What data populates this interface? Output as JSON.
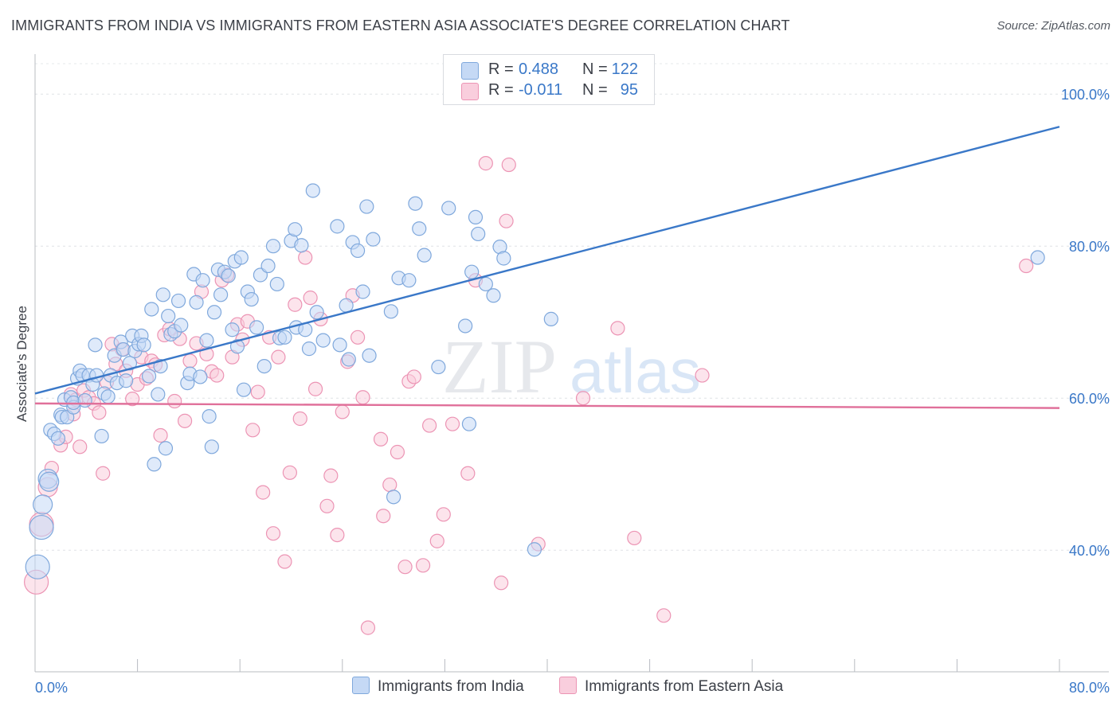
{
  "title": "IMMIGRANTS FROM INDIA VS IMMIGRANTS FROM EASTERN ASIA ASSOCIATE'S DEGREE CORRELATION CHART",
  "source": "Source: ZipAtlas.com",
  "watermark": {
    "zip": "ZIP",
    "atlas": "atlas"
  },
  "legend": {
    "india": {
      "r_label": "R =",
      "r_value": "0.488",
      "n_label": "N =",
      "n_value": "122"
    },
    "eastasia": {
      "r_label": "R =",
      "r_value": "-0.011",
      "n_label": "N =",
      "n_value": "95"
    }
  },
  "colors": {
    "india_fill": "#c5d9f5",
    "india_stroke": "#7fa8dc",
    "india_line": "#3a78c8",
    "eastasia_fill": "#f9cedd",
    "eastasia_stroke": "#ec94b4",
    "eastasia_line": "#e0709a",
    "axis_label": "#3a78c8"
  },
  "chart_data": {
    "type": "scatter",
    "title": "IMMIGRANTS FROM INDIA VS IMMIGRANTS FROM EASTERN ASIA ASSOCIATE'S DEGREE CORRELATION CHART",
    "xlabel": "",
    "ylabel": "Associate's Degree",
    "xlim": [
      0,
      80
    ],
    "ylim": [
      24,
      104
    ],
    "x_tick_labels": [
      "0.0%",
      "80.0%"
    ],
    "y_ticks": [
      40,
      60,
      80,
      100
    ],
    "y_tick_labels": [
      "40.0%",
      "60.0%",
      "80.0%",
      "100.0%"
    ],
    "grid": true,
    "legend_position": "top-center",
    "series": [
      {
        "name": "Immigrants from India",
        "trend": {
          "x": [
            0,
            80
          ],
          "y": [
            60.6,
            95.7
          ]
        },
        "points": [
          [
            0.2,
            37.8
          ],
          [
            0.5,
            43
          ],
          [
            0.6,
            46
          ],
          [
            1,
            49.4
          ],
          [
            1.1,
            49
          ],
          [
            1.2,
            55.8
          ],
          [
            1.5,
            55.3
          ],
          [
            1.8,
            54.7
          ],
          [
            2,
            57.8
          ],
          [
            2.1,
            57.5
          ],
          [
            2.3,
            59.8
          ],
          [
            2.5,
            57.5
          ],
          [
            2.8,
            60.1
          ],
          [
            3,
            58.8
          ],
          [
            3,
            59.4
          ],
          [
            3.3,
            62.6
          ],
          [
            3.5,
            63.6
          ],
          [
            3.7,
            63
          ],
          [
            3.9,
            59.7
          ],
          [
            4.2,
            63
          ],
          [
            4.5,
            61.8
          ],
          [
            4.7,
            67
          ],
          [
            4.8,
            63
          ],
          [
            5.2,
            55
          ],
          [
            5.4,
            60.6
          ],
          [
            5.7,
            60.2
          ],
          [
            5.9,
            63
          ],
          [
            6.2,
            65.6
          ],
          [
            6.4,
            62
          ],
          [
            6.7,
            67.4
          ],
          [
            6.9,
            66.4
          ],
          [
            7.1,
            62.3
          ],
          [
            7.4,
            64.6
          ],
          [
            7.6,
            68.2
          ],
          [
            7.8,
            66.2
          ],
          [
            8.1,
            67.1
          ],
          [
            8.3,
            68.2
          ],
          [
            8.5,
            67
          ],
          [
            8.9,
            62.9
          ],
          [
            9.1,
            71.7
          ],
          [
            9.3,
            51.3
          ],
          [
            9.6,
            60.5
          ],
          [
            9.8,
            64.2
          ],
          [
            10,
            73.6
          ],
          [
            10.2,
            53.4
          ],
          [
            10.4,
            70.8
          ],
          [
            10.6,
            68.4
          ],
          [
            10.9,
            68.8
          ],
          [
            11.2,
            72.8
          ],
          [
            11.4,
            69.6
          ],
          [
            11.9,
            62
          ],
          [
            12.1,
            63.2
          ],
          [
            12.4,
            76.3
          ],
          [
            12.6,
            72.6
          ],
          [
            12.9,
            62.8
          ],
          [
            13.1,
            75.5
          ],
          [
            13.4,
            67.6
          ],
          [
            13.6,
            57.6
          ],
          [
            13.8,
            53.6
          ],
          [
            14,
            71.3
          ],
          [
            14.3,
            76.9
          ],
          [
            14.5,
            73.6
          ],
          [
            14.8,
            76.6
          ],
          [
            15.1,
            76.1
          ],
          [
            15.4,
            69
          ],
          [
            15.6,
            78
          ],
          [
            15.8,
            66.8
          ],
          [
            16.1,
            78.5
          ],
          [
            16.3,
            61.1
          ],
          [
            16.6,
            74
          ],
          [
            16.9,
            73
          ],
          [
            17.3,
            69.3
          ],
          [
            17.6,
            76.2
          ],
          [
            17.9,
            64.2
          ],
          [
            18.2,
            77.4
          ],
          [
            18.6,
            80
          ],
          [
            18.9,
            75
          ],
          [
            19.1,
            67.9
          ],
          [
            19.5,
            68
          ],
          [
            20,
            80.7
          ],
          [
            20.3,
            82.2
          ],
          [
            20.4,
            69.3
          ],
          [
            20.8,
            80.1
          ],
          [
            21.1,
            69
          ],
          [
            21.4,
            66.5
          ],
          [
            21.7,
            87.3
          ],
          [
            22,
            71.3
          ],
          [
            22.5,
            67.6
          ],
          [
            23.6,
            82.6
          ],
          [
            23.8,
            67
          ],
          [
            24.3,
            72.2
          ],
          [
            24.5,
            65.1
          ],
          [
            24.8,
            80.5
          ],
          [
            25.2,
            79.4
          ],
          [
            25.6,
            74
          ],
          [
            25.9,
            85.2
          ],
          [
            26.1,
            65.6
          ],
          [
            26.4,
            80.9
          ],
          [
            27.8,
            71.4
          ],
          [
            28,
            47
          ],
          [
            28.4,
            75.8
          ],
          [
            29.2,
            75.5
          ],
          [
            29.7,
            85.6
          ],
          [
            30,
            82.3
          ],
          [
            30.4,
            78.8
          ],
          [
            31.5,
            64.1
          ],
          [
            32.3,
            85
          ],
          [
            33.6,
            69.5
          ],
          [
            33.9,
            56.6
          ],
          [
            34.1,
            76.6
          ],
          [
            34.4,
            83.8
          ],
          [
            34.6,
            81.6
          ],
          [
            35.2,
            75
          ],
          [
            35.8,
            73.5
          ],
          [
            36.3,
            79.9
          ],
          [
            36.6,
            78.4
          ],
          [
            39,
            40.1
          ],
          [
            40.3,
            70.4
          ],
          [
            78.3,
            78.5
          ]
        ]
      },
      {
        "name": "Immigrants from Eastern Asia",
        "trend": {
          "x": [
            0,
            80
          ],
          "y": [
            59.3,
            58.7
          ]
        },
        "points": [
          [
            0.1,
            35.8
          ],
          [
            0.5,
            43.4
          ],
          [
            1,
            48.3
          ],
          [
            1.3,
            50.8
          ],
          [
            2,
            53.8
          ],
          [
            2.4,
            54.9
          ],
          [
            2.8,
            60.5
          ],
          [
            3,
            57.9
          ],
          [
            3.2,
            59.8
          ],
          [
            3.5,
            53.6
          ],
          [
            3.8,
            61
          ],
          [
            4.2,
            60.1
          ],
          [
            4.6,
            59.3
          ],
          [
            5,
            58.1
          ],
          [
            5.3,
            50.1
          ],
          [
            5.6,
            62.1
          ],
          [
            6,
            67.1
          ],
          [
            6.3,
            64.5
          ],
          [
            6.8,
            66.4
          ],
          [
            7.1,
            63.6
          ],
          [
            7.6,
            59.9
          ],
          [
            8,
            61.8
          ],
          [
            8.3,
            65.4
          ],
          [
            8.7,
            62.6
          ],
          [
            9.1,
            64.9
          ],
          [
            9.4,
            64.4
          ],
          [
            9.8,
            55.1
          ],
          [
            10.1,
            68.3
          ],
          [
            10.5,
            69.1
          ],
          [
            10.9,
            59.6
          ],
          [
            11.3,
            67.8
          ],
          [
            11.7,
            57
          ],
          [
            12.1,
            64.9
          ],
          [
            12.6,
            67.2
          ],
          [
            13,
            74
          ],
          [
            13.4,
            65.8
          ],
          [
            13.8,
            63.5
          ],
          [
            14.2,
            63
          ],
          [
            14.6,
            75.5
          ],
          [
            15,
            76.2
          ],
          [
            15.4,
            65.4
          ],
          [
            15.8,
            69.7
          ],
          [
            16.2,
            67.7
          ],
          [
            16.6,
            70.1
          ],
          [
            17,
            55.8
          ],
          [
            17.4,
            60.8
          ],
          [
            17.8,
            47.6
          ],
          [
            18.3,
            68
          ],
          [
            18.6,
            42.2
          ],
          [
            19,
            65.4
          ],
          [
            19.5,
            38.5
          ],
          [
            19.9,
            50.2
          ],
          [
            20.3,
            72.3
          ],
          [
            20.7,
            57.3
          ],
          [
            21.1,
            78.5
          ],
          [
            21.5,
            73.2
          ],
          [
            21.9,
            61.2
          ],
          [
            22.3,
            70.4
          ],
          [
            22.8,
            45.8
          ],
          [
            23.1,
            49.8
          ],
          [
            23.6,
            42
          ],
          [
            24,
            58.2
          ],
          [
            24.4,
            64.8
          ],
          [
            24.8,
            73.5
          ],
          [
            25.2,
            68
          ],
          [
            25.6,
            60.1
          ],
          [
            26,
            29.8
          ],
          [
            27,
            54.6
          ],
          [
            27.2,
            44.5
          ],
          [
            27.7,
            48.6
          ],
          [
            28.3,
            52.9
          ],
          [
            28.9,
            37.8
          ],
          [
            29.2,
            62.2
          ],
          [
            29.6,
            62.8
          ],
          [
            30.3,
            38
          ],
          [
            30.8,
            56.4
          ],
          [
            31.4,
            41.2
          ],
          [
            31.9,
            44.7
          ],
          [
            32.6,
            56.6
          ],
          [
            33.8,
            50.1
          ],
          [
            34.4,
            75.5
          ],
          [
            35.2,
            90.9
          ],
          [
            36.4,
            35.7
          ],
          [
            36.8,
            83.3
          ],
          [
            37,
            90.7
          ],
          [
            39.3,
            40.8
          ],
          [
            42.8,
            60
          ],
          [
            45.5,
            69.2
          ],
          [
            46.8,
            41.6
          ],
          [
            49.1,
            31.4
          ],
          [
            52.1,
            63
          ],
          [
            77.4,
            77.4
          ]
        ]
      }
    ]
  }
}
